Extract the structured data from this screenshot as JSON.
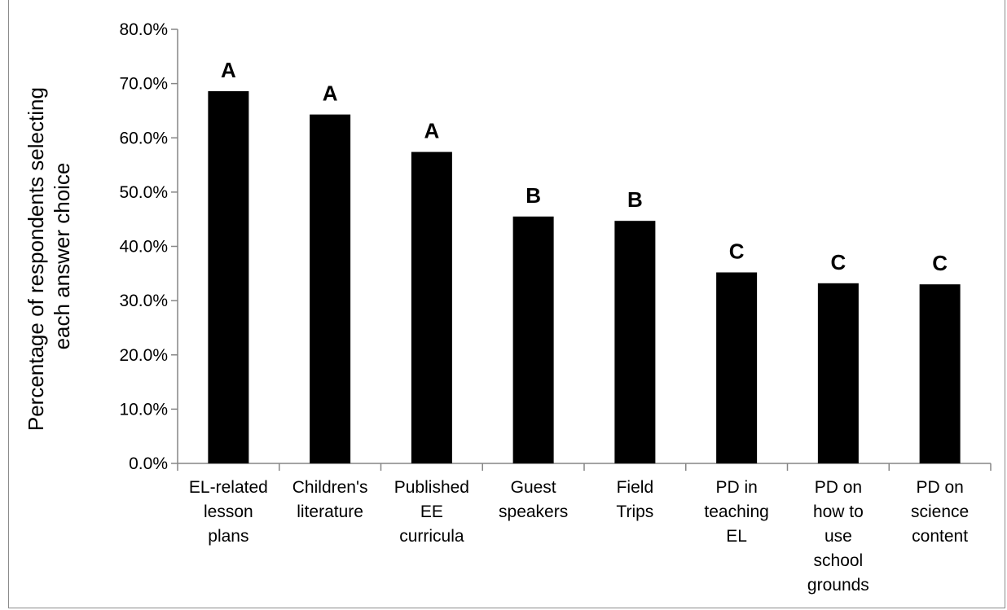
{
  "chart_data": {
    "type": "bar",
    "title": "",
    "xlabel": "",
    "ylabel_lines": [
      "Percentage of respondents selecting",
      "each answer choice"
    ],
    "ylim": [
      0,
      80
    ],
    "yticks": [
      "0.0%",
      "10.0%",
      "20.0%",
      "30.0%",
      "40.0%",
      "50.0%",
      "60.0%",
      "70.0%",
      "80.0%"
    ],
    "categories": [
      [
        "EL-related",
        "lesson",
        "plans"
      ],
      [
        "Children's",
        "literature"
      ],
      [
        "Published",
        "EE",
        "curricula"
      ],
      [
        "Guest",
        "speakers"
      ],
      [
        "Field",
        "Trips"
      ],
      [
        "PD in",
        "teaching",
        "EL"
      ],
      [
        "PD on",
        "how to",
        "use",
        "school",
        "grounds"
      ],
      [
        "PD on",
        "science",
        "content"
      ]
    ],
    "values": [
      68.6,
      64.3,
      57.4,
      45.5,
      44.7,
      35.2,
      33.2,
      33.0
    ],
    "group_labels": [
      "A",
      "A",
      "A",
      "B",
      "B",
      "C",
      "C",
      "C"
    ],
    "bar_color": "#000000",
    "grid": false,
    "legend": "none"
  }
}
